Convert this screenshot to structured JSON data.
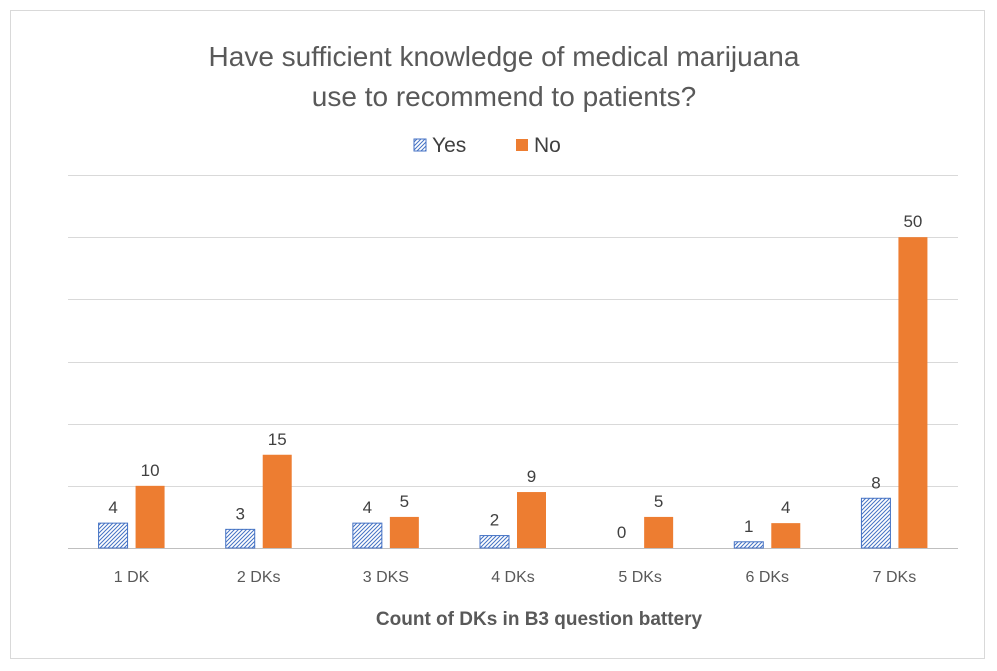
{
  "chart_data": {
    "type": "bar",
    "title_lines": [
      "Have sufficient knowledge of medical marijuana",
      "use to recommend to patients?"
    ],
    "categories": [
      "1 DK",
      "2 DKs",
      "3 DKS",
      "4 DKs",
      "5 DKs",
      "6 DKs",
      "7 DKs"
    ],
    "series": [
      {
        "name": "Yes",
        "values": [
          4,
          3,
          4,
          2,
          0,
          1,
          8
        ],
        "color": "#4472c4",
        "pattern": "hatch"
      },
      {
        "name": "No",
        "values": [
          10,
          15,
          5,
          9,
          5,
          4,
          50
        ],
        "color": "#ed7d31",
        "pattern": "solid"
      }
    ],
    "xlabel": "Count of DKs in B3 question battery",
    "ylabel": "",
    "ylim": [
      0,
      60
    ],
    "grid": true,
    "legend_position": "top"
  }
}
